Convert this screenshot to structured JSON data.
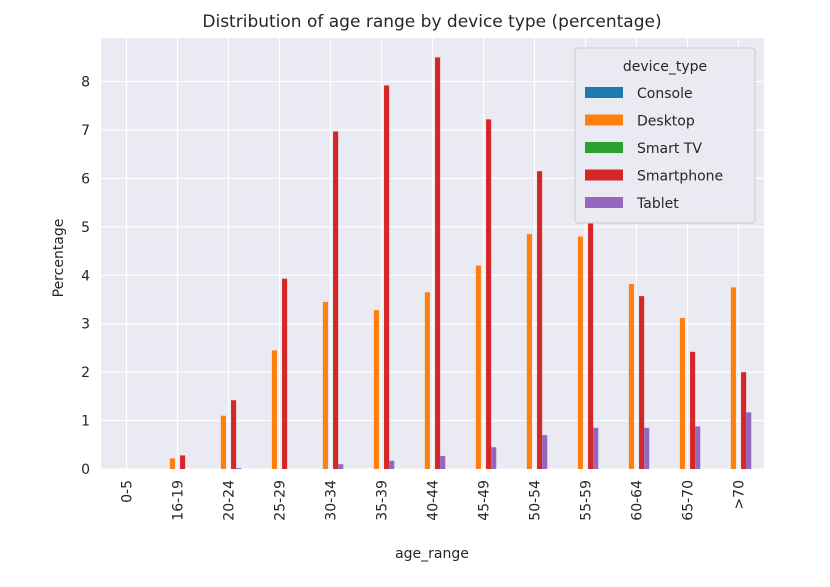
{
  "chart_data": {
    "type": "bar",
    "title": "Distribution of age range by device type (percentage)",
    "xlabel": "age_range",
    "ylabel": "Percentage",
    "ylim": [
      0,
      8.9
    ],
    "yticks": [
      0,
      1,
      2,
      3,
      4,
      5,
      6,
      7,
      8
    ],
    "grid": true,
    "legend": {
      "title": "device_type",
      "placement": "top-right"
    },
    "categories": [
      "0-5",
      "16-19",
      "20-24",
      "25-29",
      "30-34",
      "35-39",
      "40-44",
      "45-49",
      "50-54",
      "55-59",
      "60-64",
      "65-70",
      ">70"
    ],
    "series": [
      {
        "name": "Console",
        "color": "#1f77b4",
        "values": [
          0,
          0,
          0,
          0,
          0,
          0,
          0,
          0,
          0,
          0,
          0,
          0,
          0
        ]
      },
      {
        "name": "Desktop",
        "color": "#ff7f0e",
        "values": [
          0,
          0.22,
          1.1,
          2.45,
          3.45,
          3.28,
          3.65,
          4.2,
          4.85,
          4.8,
          3.82,
          3.12,
          3.75
        ]
      },
      {
        "name": "Smart TV",
        "color": "#2ca02c",
        "values": [
          0,
          0,
          0,
          0,
          0,
          0,
          0,
          0,
          0,
          0,
          0,
          0,
          0
        ]
      },
      {
        "name": "Smartphone",
        "color": "#d62728",
        "values": [
          0,
          0.28,
          1.42,
          3.93,
          6.97,
          7.92,
          8.5,
          7.22,
          6.15,
          5.07,
          3.57,
          2.42,
          2.0
        ]
      },
      {
        "name": "Tablet",
        "color": "#9467bd",
        "values": [
          0,
          0,
          0.02,
          0,
          0.1,
          0.17,
          0.27,
          0.45,
          0.7,
          0.85,
          0.85,
          0.88,
          1.17
        ]
      }
    ]
  }
}
